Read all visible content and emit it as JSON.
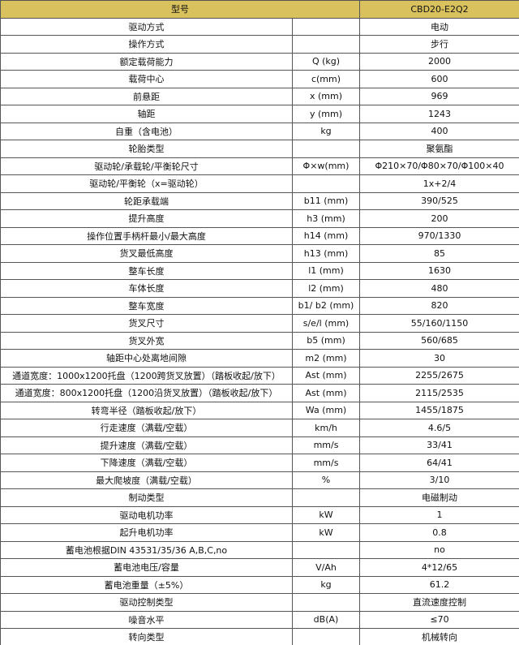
{
  "header": {
    "model_label": "型号",
    "model": "CBD20-E2Q2"
  },
  "table": {
    "rows": [
      {
        "label": "驱动方式",
        "value": "电动"
      },
      {
        "label": "操作方式",
        "value": "步行"
      },
      {
        "label": "额定载荷能力",
        "unit": "Q (kg)",
        "value": "2000"
      },
      {
        "label": "载荷中心",
        "unit": "c(mm)",
        "value": "600"
      },
      {
        "label": "前悬距",
        "unit": "x (mm)",
        "value": "969"
      },
      {
        "label": "轴距",
        "unit": "y (mm)",
        "value": "1243"
      },
      {
        "label": "自重（含电池）",
        "unit": "kg",
        "value": "400"
      },
      {
        "label": "轮胎类型",
        "value": "聚氨酯"
      },
      {
        "label": "驱动轮/承载轮/平衡轮尺寸",
        "unit": "Φ×w(mm)",
        "value": "Φ210×70/Φ80×70/Φ100×40"
      },
      {
        "label": "驱动轮/平衡轮（x=驱动轮）",
        "value": "1x+2/4"
      },
      {
        "label": "轮距承载端",
        "unit": "b11 (mm)",
        "value": "390/525"
      },
      {
        "label": "提升高度",
        "unit": "h3 (mm)",
        "value": "200"
      },
      {
        "label": "操作位置手柄杆最小/最大高度",
        "unit": "h14 (mm)",
        "value": "970/1330"
      },
      {
        "label": "货叉最低高度",
        "unit": "h13 (mm)",
        "value": "85"
      },
      {
        "label": "整车长度",
        "unit": "l1 (mm)",
        "value": "1630"
      },
      {
        "label": "车体长度",
        "unit": "l2 (mm)",
        "value": "480"
      },
      {
        "label": "整车宽度",
        "unit": "b1/ b2 (mm)",
        "value": "820"
      },
      {
        "label": "货叉尺寸",
        "unit": "s/e/l (mm)",
        "value": "55/160/1150"
      },
      {
        "label": "货叉外宽",
        "unit": "b5 (mm)",
        "value": "560/685"
      },
      {
        "label": "轴距中心处离地间隙",
        "unit": "m2 (mm)",
        "value": "30"
      },
      {
        "label": "通道宽度：1000x1200托盘（1200跨货叉放置）（踏板收起/放下）",
        "unit": "Ast (mm)",
        "value": "2255/2675"
      },
      {
        "label": "通道宽度：800x1200托盘（1200沿货叉放置）（踏板收起/放下）",
        "unit": "Ast (mm)",
        "value": "2115/2535"
      },
      {
        "label": "转弯半径（踏板收起/放下）",
        "unit": "Wa (mm)",
        "value": "1455/1875"
      },
      {
        "label": "行走速度（满载/空载）",
        "unit": "km/h",
        "value": "4.6/5"
      },
      {
        "label": "提升速度（满载/空载）",
        "unit": "mm/s",
        "value": "33/41"
      },
      {
        "label": "下降速度（满载/空载）",
        "unit": "mm/s",
        "value": "64/41"
      },
      {
        "label": "最大爬坡度（满载/空载）",
        "unit": "%",
        "value": "3/10"
      },
      {
        "label": "制动类型",
        "value": "电磁制动"
      },
      {
        "label": "驱动电机功率",
        "unit": "kW",
        "value": "1"
      },
      {
        "label": "起升电机功率",
        "unit": "kW",
        "value": "0.8"
      },
      {
        "label": "蓄电池根据DIN 43531/35/36 A,B,C,no",
        "value": "no"
      },
      {
        "label": "蓄电池电压/容量",
        "unit": "V/Ah",
        "value": "4*12/65"
      },
      {
        "label": "蓄电池重量（±5%）",
        "unit": "kg",
        "value": "61.2"
      },
      {
        "label": "驱动控制类型",
        "value": "直流速度控制"
      },
      {
        "label": "噪音水平",
        "unit": "dB(A)",
        "value": "≤70"
      },
      {
        "label": "转向类型",
        "value": "机械转向"
      }
    ]
  }
}
